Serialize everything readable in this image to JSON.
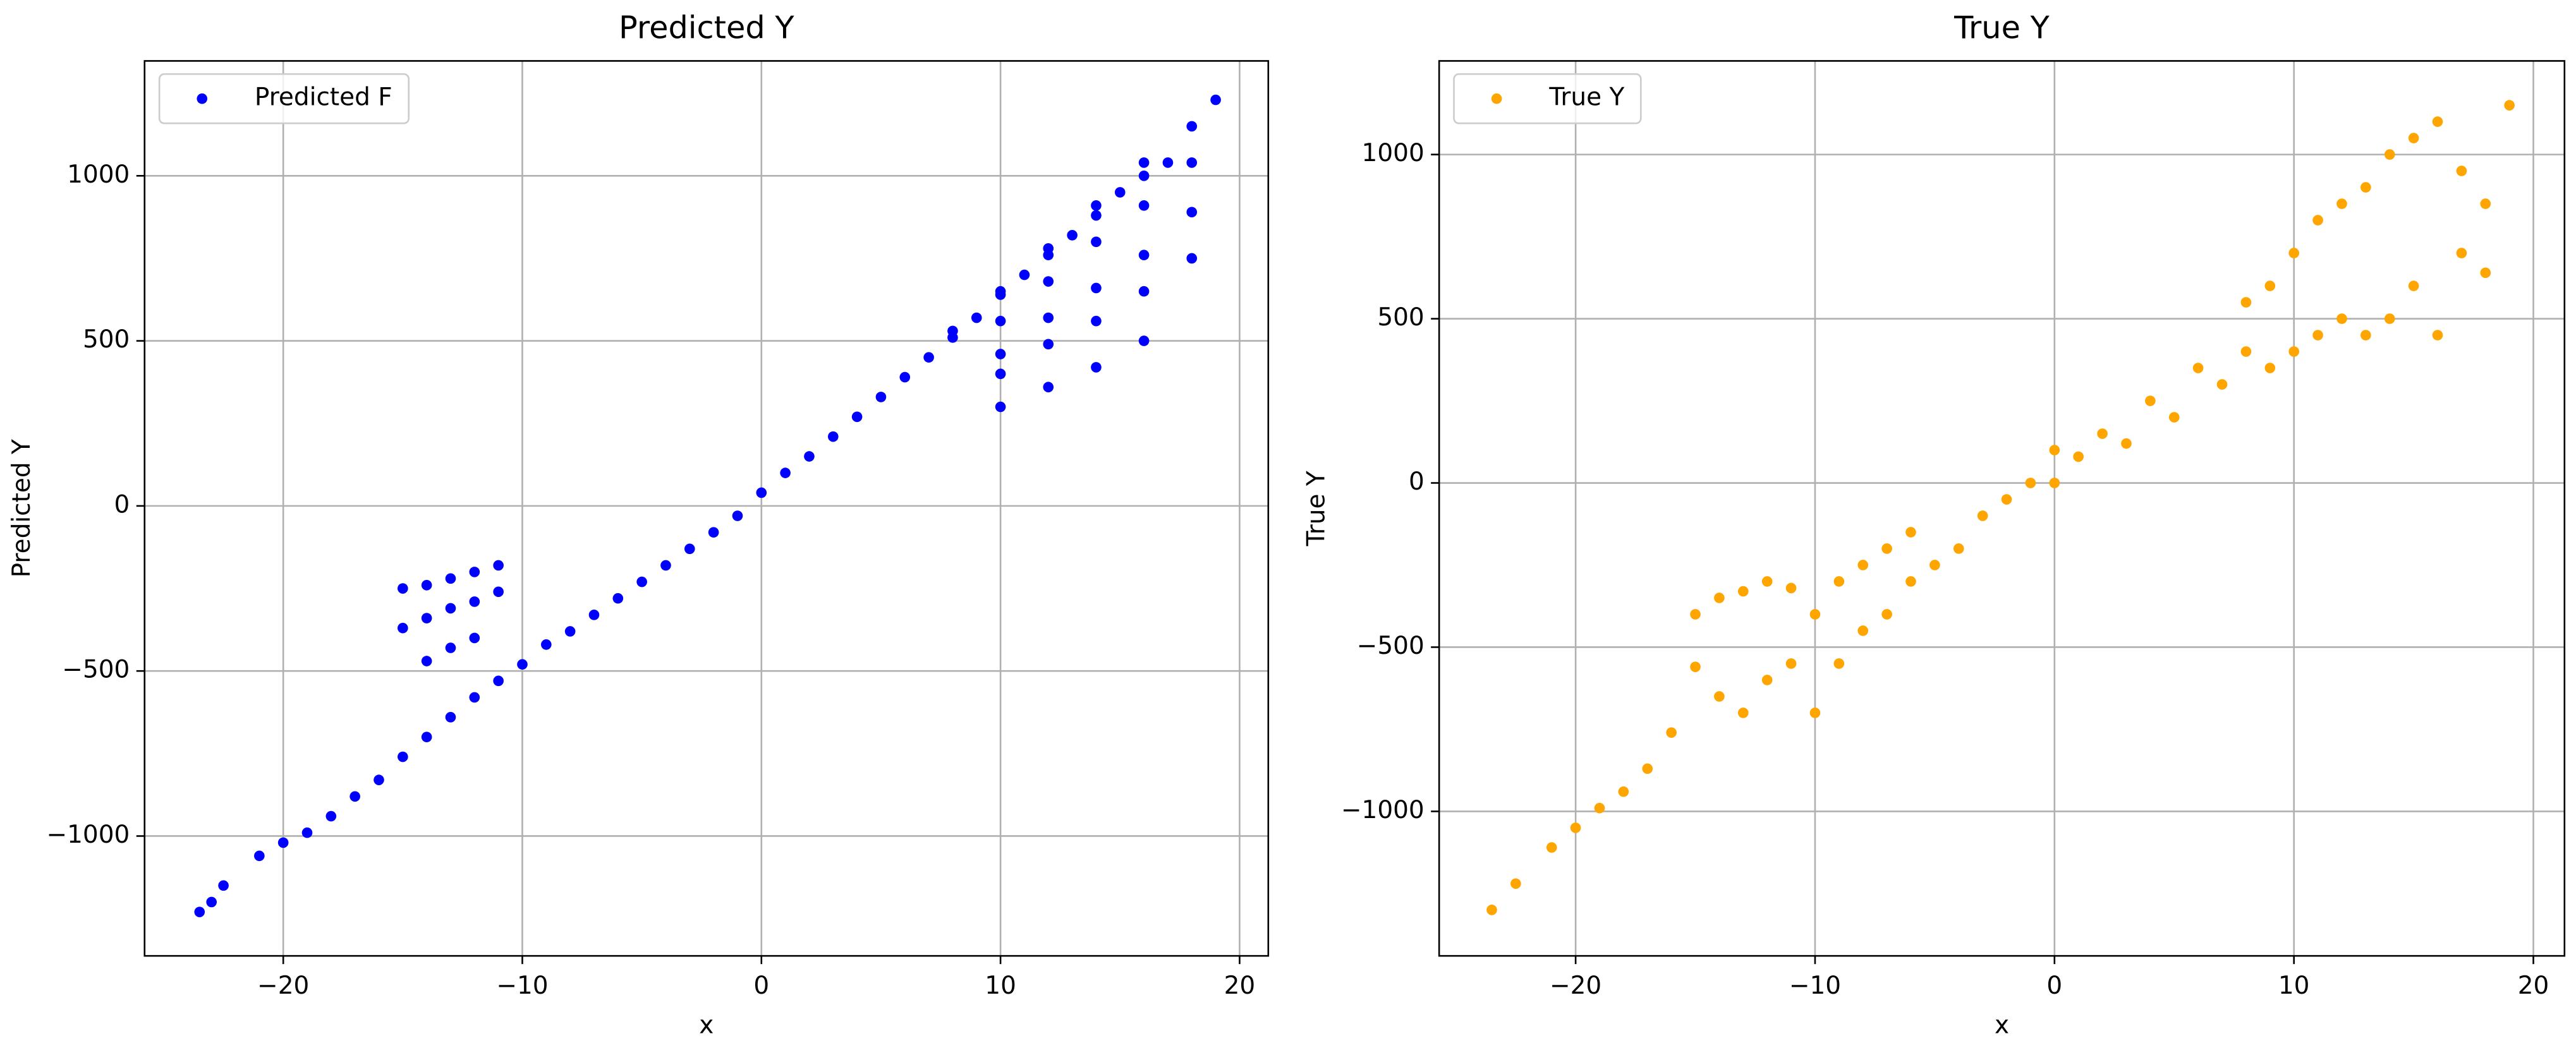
{
  "chart_data": [
    {
      "type": "scatter",
      "title": "Predicted Y",
      "xlabel": "x",
      "ylabel": "Predicted Y",
      "grid": true,
      "legend": "upper left",
      "xlim": [
        -25.8,
        21.2
      ],
      "ylim": [
        -1363,
        1348
      ],
      "xticks": [
        {
          "value": -20,
          "label": "−20"
        },
        {
          "value": -10,
          "label": "−10"
        },
        0,
        10,
        20
      ],
      "yticks": [
        {
          "value": -1000,
          "label": "−1000"
        },
        {
          "value": -500,
          "label": "−500"
        },
        0,
        500,
        1000
      ],
      "series": [
        {
          "name": "Predicted F",
          "color": "#0000ff",
          "x": [
            -23.5,
            -23,
            -22.5,
            -21,
            -20,
            -19,
            -18,
            -17,
            -16,
            -15,
            -14,
            -13,
            -12,
            -11,
            -10,
            -9,
            -8,
            -7,
            -6,
            -5,
            -4,
            -3,
            -2,
            -1,
            0,
            1,
            2,
            3,
            4,
            5,
            6,
            7,
            8,
            9,
            10,
            11,
            12,
            13,
            14,
            15,
            16,
            17,
            18,
            19,
            -15,
            -14,
            -13,
            -12,
            -11,
            -15,
            -14,
            -13,
            -12,
            -11,
            -14,
            -13,
            -12,
            10,
            12,
            14,
            16,
            10,
            12,
            14,
            16,
            18,
            10,
            12,
            14,
            16,
            18,
            10,
            12,
            14,
            16,
            18,
            8,
            10,
            12,
            14,
            16
          ],
          "values": [
            -1230,
            -1200,
            -1150,
            -1060,
            -1020,
            -990,
            -940,
            -880,
            -830,
            -760,
            -700,
            -640,
            -580,
            -530,
            -480,
            -420,
            -380,
            -330,
            -280,
            -230,
            -180,
            -130,
            -80,
            -30,
            40,
            100,
            150,
            210,
            270,
            330,
            390,
            450,
            510,
            570,
            640,
            700,
            760,
            820,
            880,
            950,
            1000,
            1040,
            1150,
            1230,
            -250,
            -240,
            -220,
            -200,
            -180,
            -370,
            -340,
            -310,
            -290,
            -260,
            -470,
            -430,
            -400,
            300,
            360,
            420,
            500,
            400,
            490,
            560,
            650,
            750,
            460,
            570,
            660,
            760,
            890,
            560,
            680,
            800,
            910,
            1040,
            530,
            650,
            780,
            910,
            1040
          ]
        }
      ]
    },
    {
      "type": "scatter",
      "title": "True Y",
      "xlabel": "x",
      "ylabel": "True Y",
      "grid": true,
      "legend": "upper left",
      "xlim": [
        -25.7,
        21.3
      ],
      "ylim": [
        -1440,
        1285
      ],
      "xticks": [
        {
          "value": -20,
          "label": "−20"
        },
        {
          "value": -10,
          "label": "−10"
        },
        0,
        10,
        20
      ],
      "yticks": [
        {
          "value": -1000,
          "label": "−1000"
        },
        {
          "value": -500,
          "label": "−500"
        },
        0,
        500,
        1000
      ],
      "series": [
        {
          "name": "True Y",
          "color": "#ffa500",
          "x": [
            -23.5,
            -22.5,
            -21,
            -20,
            -19,
            -18,
            -17,
            -16,
            -15,
            -15,
            -14,
            -14,
            -13,
            -13,
            -12,
            -12,
            -11,
            -11,
            -10,
            -10,
            -9,
            -9,
            -8,
            -8,
            -7,
            -7,
            -6,
            -6,
            -5,
            -4,
            -3,
            -2,
            -1,
            0,
            0,
            1,
            2,
            3,
            4,
            5,
            6,
            7,
            8,
            8,
            9,
            9,
            10,
            10,
            11,
            11,
            12,
            12,
            13,
            13,
            14,
            14,
            15,
            15,
            16,
            16,
            17,
            17,
            18,
            18,
            19
          ],
          "values": [
            -1300,
            -1220,
            -1110,
            -1050,
            -990,
            -940,
            -870,
            -760,
            -560,
            -400,
            -650,
            -350,
            -700,
            -330,
            -600,
            -300,
            -550,
            -320,
            -700,
            -400,
            -550,
            -300,
            -450,
            -250,
            -400,
            -200,
            -300,
            -150,
            -250,
            -200,
            -100,
            -50,
            0,
            0,
            100,
            80,
            150,
            120,
            250,
            200,
            350,
            300,
            400,
            550,
            350,
            600,
            400,
            700,
            450,
            800,
            500,
            850,
            450,
            900,
            500,
            1000,
            600,
            1050,
            450,
            1100,
            700,
            950,
            640,
            850,
            1150
          ]
        }
      ]
    }
  ]
}
